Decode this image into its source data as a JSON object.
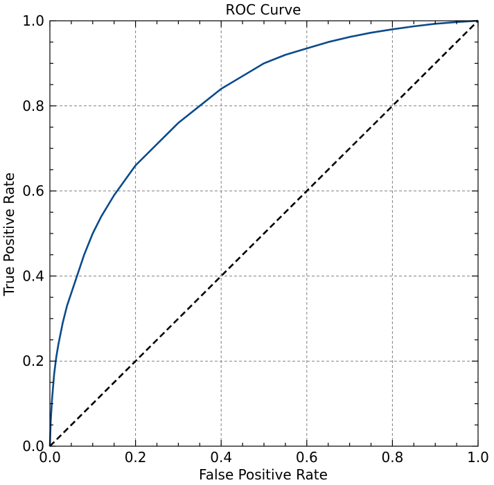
{
  "chart_data": {
    "type": "line",
    "title": "ROC Curve",
    "xlabel": "False Positive Rate",
    "ylabel": "True Positive Rate",
    "xlim": [
      0.0,
      1.0
    ],
    "ylim": [
      0.0,
      1.0
    ],
    "grid": true,
    "x_ticks": [
      "0.0",
      "0.2",
      "0.4",
      "0.6",
      "0.8",
      "1.0"
    ],
    "y_ticks": [
      "0.0",
      "0.2",
      "0.4",
      "0.6",
      "0.8",
      "1.0"
    ],
    "series": [
      {
        "color": "#0b4a8b",
        "style": "solid",
        "x": [
          0.0,
          0.002,
          0.005,
          0.01,
          0.015,
          0.02,
          0.03,
          0.04,
          0.05,
          0.06,
          0.07,
          0.08,
          0.1,
          0.12,
          0.15,
          0.2,
          0.25,
          0.3,
          0.35,
          0.4,
          0.45,
          0.5,
          0.55,
          0.6,
          0.65,
          0.7,
          0.75,
          0.8,
          0.85,
          0.9,
          0.95,
          1.0
        ],
        "y": [
          0.0,
          0.06,
          0.11,
          0.17,
          0.21,
          0.24,
          0.29,
          0.33,
          0.36,
          0.39,
          0.42,
          0.45,
          0.5,
          0.54,
          0.59,
          0.66,
          0.71,
          0.76,
          0.8,
          0.84,
          0.87,
          0.9,
          0.92,
          0.935,
          0.95,
          0.962,
          0.972,
          0.98,
          0.987,
          0.993,
          0.997,
          1.0
        ]
      },
      {
        "color": "#000000",
        "style": "dashed",
        "x": [
          0.0,
          1.0
        ],
        "y": [
          0.0,
          1.0
        ]
      }
    ]
  }
}
